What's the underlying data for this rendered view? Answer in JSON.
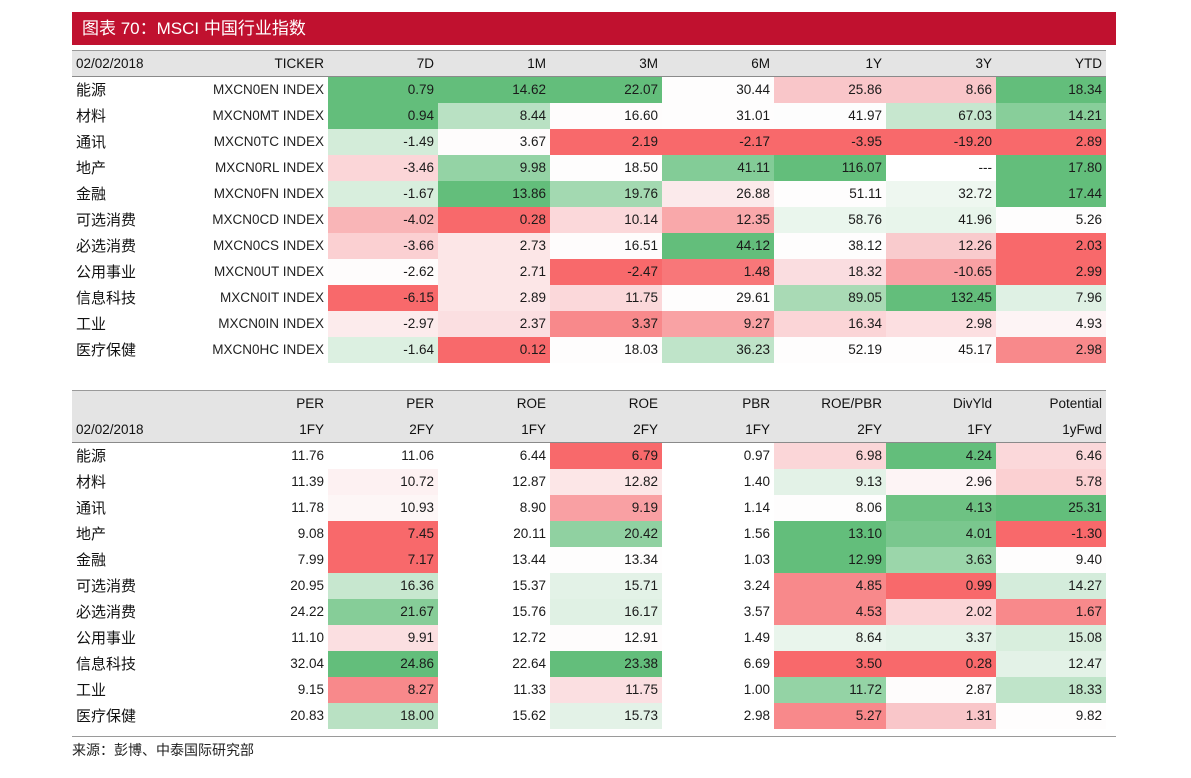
{
  "title": "图表 70：MSCI 中国行业指数",
  "table1": {
    "date": "02/02/2018",
    "columns": [
      "TICKER",
      "7D",
      "1M",
      "3M",
      "6M",
      "1Y",
      "3Y",
      "YTD"
    ],
    "rows": [
      {
        "name": "能源",
        "ticker": "MXCN0EN INDEX",
        "values": [
          "0.79",
          "14.62",
          "22.07",
          "30.44",
          "25.86",
          "8.66",
          "18.34"
        ]
      },
      {
        "name": "材料",
        "ticker": "MXCN0MT INDEX",
        "values": [
          "0.94",
          "8.44",
          "16.60",
          "31.01",
          "41.97",
          "67.03",
          "14.21"
        ]
      },
      {
        "name": "通讯",
        "ticker": "MXCN0TC INDEX",
        "values": [
          "-1.49",
          "3.67",
          "2.19",
          "-2.17",
          "-3.95",
          "-19.20",
          "2.89"
        ]
      },
      {
        "name": "地产",
        "ticker": "MXCN0RL INDEX",
        "values": [
          "-3.46",
          "9.98",
          "18.50",
          "41.11",
          "116.07",
          "---",
          "17.80"
        ]
      },
      {
        "name": "金融",
        "ticker": "MXCN0FN INDEX",
        "values": [
          "-1.67",
          "13.86",
          "19.76",
          "26.88",
          "51.11",
          "32.72",
          "17.44"
        ]
      },
      {
        "name": "可选消费",
        "ticker": "MXCN0CD INDEX",
        "values": [
          "-4.02",
          "0.28",
          "10.14",
          "12.35",
          "58.76",
          "41.96",
          "5.26"
        ]
      },
      {
        "name": "必选消费",
        "ticker": "MXCN0CS INDEX",
        "values": [
          "-3.66",
          "2.73",
          "16.51",
          "44.12",
          "38.12",
          "12.26",
          "2.03"
        ]
      },
      {
        "name": "公用事业",
        "ticker": "MXCN0UT INDEX",
        "values": [
          "-2.62",
          "2.71",
          "-2.47",
          "1.48",
          "18.32",
          "-10.65",
          "2.99"
        ]
      },
      {
        "name": "信息科技",
        "ticker": "MXCN0IT INDEX",
        "values": [
          "-6.15",
          "2.89",
          "11.75",
          "29.61",
          "89.05",
          "132.45",
          "7.96"
        ]
      },
      {
        "name": "工业",
        "ticker": "MXCN0IN INDEX",
        "values": [
          "-2.97",
          "2.37",
          "3.37",
          "9.27",
          "16.34",
          "2.98",
          "4.93"
        ]
      },
      {
        "name": "医疗保健",
        "ticker": "MXCN0HC INDEX",
        "values": [
          "-1.64",
          "0.12",
          "18.03",
          "36.23",
          "52.19",
          "45.17",
          "2.98"
        ]
      }
    ],
    "colors": [
      [
        "#63be7b",
        "#63be7b",
        "#63be7b",
        "#fefdfd",
        "#f9c6c9",
        "#f9c6c9",
        "#63be7b"
      ],
      [
        "#63be7b",
        "#b9e1c3",
        "#fefcfc",
        "#fefdfd",
        "#fdfdfd",
        "#c7e7cf",
        "#88ce9a"
      ],
      [
        "#d3ecd9",
        "#fefcfc",
        "#f8696b",
        "#f8696b",
        "#f8696b",
        "#f8696b",
        "#f8696b"
      ],
      [
        "#fbd6d8",
        "#94d3a5",
        "#fefdfd",
        "#83cc97",
        "#63be7b",
        "#ffffff",
        "#63be7b"
      ],
      [
        "#d8eedd",
        "#63be7b",
        "#a3d9b1",
        "#fbeaeb",
        "#fefdfd",
        "#eef7f0",
        "#63be7b"
      ],
      [
        "#f9b5b7",
        "#f8696b",
        "#fbd8da",
        "#f9a8aa",
        "#eaf6ed",
        "#e8f5eb",
        "#fefdfd"
      ],
      [
        "#fbd0d2",
        "#fce6e7",
        "#fefcfc",
        "#63be7b",
        "#fefdfd",
        "#f9cbcd",
        "#f8696b"
      ],
      [
        "#fefcfc",
        "#fce6e7",
        "#f8696b",
        "#f87779",
        "#fadde0",
        "#f9a0a3",
        "#f8696b"
      ],
      [
        "#f8696b",
        "#fce6e7",
        "#fbd8da",
        "#fefdfd",
        "#a9dab5",
        "#63be7b",
        "#dff1e4"
      ],
      [
        "#fcebec",
        "#fbdfe1",
        "#f8898b",
        "#f9a2a4",
        "#fbd5d7",
        "#fcdfe1",
        "#fdf4f5"
      ],
      [
        "#dcf0e1",
        "#f8696b",
        "#fefdfd",
        "#bfe4c9",
        "#fefdfd",
        "#fefdfd",
        "#f8898b"
      ]
    ]
  },
  "table2": {
    "date": "02/02/2018",
    "header1": [
      "PER",
      "PER",
      "ROE",
      "ROE",
      "PBR",
      "ROE/PBR",
      "DivYld",
      "Potential"
    ],
    "header2": [
      "1FY",
      "2FY",
      "1FY",
      "2FY",
      "1FY",
      "2FY",
      "1FY",
      "1yFwd"
    ],
    "rows": [
      {
        "name": "能源",
        "values": [
          "11.76",
          "11.06",
          "6.44",
          "6.79",
          "0.97",
          "6.98",
          "4.24",
          "6.46"
        ]
      },
      {
        "name": "材料",
        "values": [
          "11.39",
          "10.72",
          "12.87",
          "12.82",
          "1.40",
          "9.13",
          "2.96",
          "5.78"
        ]
      },
      {
        "name": "通讯",
        "values": [
          "11.78",
          "10.93",
          "8.90",
          "9.19",
          "1.14",
          "8.06",
          "4.13",
          "25.31"
        ]
      },
      {
        "name": "地产",
        "values": [
          "9.08",
          "7.45",
          "20.11",
          "20.42",
          "1.56",
          "13.10",
          "4.01",
          "-1.30"
        ]
      },
      {
        "name": "金融",
        "values": [
          "7.99",
          "7.17",
          "13.44",
          "13.34",
          "1.03",
          "12.99",
          "3.63",
          "9.40"
        ]
      },
      {
        "name": "可选消费",
        "values": [
          "20.95",
          "16.36",
          "15.37",
          "15.71",
          "3.24",
          "4.85",
          "0.99",
          "14.27"
        ]
      },
      {
        "name": "必选消费",
        "values": [
          "24.22",
          "21.67",
          "15.76",
          "16.17",
          "3.57",
          "4.53",
          "2.02",
          "1.67"
        ]
      },
      {
        "name": "公用事业",
        "values": [
          "11.10",
          "9.91",
          "12.72",
          "12.91",
          "1.49",
          "8.64",
          "3.37",
          "15.08"
        ]
      },
      {
        "name": "信息科技",
        "values": [
          "32.04",
          "24.86",
          "22.64",
          "23.38",
          "6.69",
          "3.50",
          "0.28",
          "12.47"
        ]
      },
      {
        "name": "工业",
        "values": [
          "9.15",
          "8.27",
          "11.33",
          "11.75",
          "1.00",
          "11.72",
          "2.87",
          "18.33"
        ]
      },
      {
        "name": "医疗保健",
        "values": [
          "20.83",
          "18.00",
          "15.62",
          "15.73",
          "2.98",
          "5.27",
          "1.31",
          "9.82"
        ]
      }
    ],
    "colors": [
      [
        "#ffffff",
        "#ffffff",
        "#ffffff",
        "#f8696b",
        "#ffffff",
        "#fbd6d8",
        "#63be7b",
        "#fbd8da"
      ],
      [
        "#ffffff",
        "#fdf1f2",
        "#ffffff",
        "#fce6e7",
        "#ffffff",
        "#e3f2e7",
        "#fdf4f5",
        "#fbd0d2"
      ],
      [
        "#ffffff",
        "#fdf6f6",
        "#ffffff",
        "#f9a0a3",
        "#ffffff",
        "#fefdfd",
        "#6ec283",
        "#63be7b"
      ],
      [
        "#ffffff",
        "#f8696b",
        "#ffffff",
        "#90d1a1",
        "#ffffff",
        "#63be7b",
        "#7ac78e",
        "#f8696b"
      ],
      [
        "#ffffff",
        "#f8696b",
        "#ffffff",
        "#fefdfd",
        "#ffffff",
        "#63be7b",
        "#9bd6aa",
        "#fefdfd"
      ],
      [
        "#ffffff",
        "#c7e7cf",
        "#ffffff",
        "#e3f2e7",
        "#ffffff",
        "#f8898b",
        "#f8696b",
        "#d4ecdb"
      ],
      [
        "#ffffff",
        "#86cd98",
        "#ffffff",
        "#e0f1e4",
        "#ffffff",
        "#f8898b",
        "#fbd5d7",
        "#f8898b"
      ],
      [
        "#ffffff",
        "#fbdfe1",
        "#ffffff",
        "#fefcfc",
        "#ffffff",
        "#e9f5ec",
        "#e4f3e8",
        "#d8eedd"
      ],
      [
        "#ffffff",
        "#63be7b",
        "#ffffff",
        "#63be7b",
        "#ffffff",
        "#f8696b",
        "#f8696b",
        "#e3f2e7"
      ],
      [
        "#ffffff",
        "#f8898b",
        "#ffffff",
        "#fbdfe1",
        "#ffffff",
        "#94d3a5",
        "#fefcfc",
        "#bfe4c9"
      ],
      [
        "#ffffff",
        "#b9e1c3",
        "#ffffff",
        "#e3f2e7",
        "#ffffff",
        "#f8898b",
        "#f9c6c9",
        "#fefdfd"
      ]
    ]
  },
  "source": "来源：彭博、中泰国际研究部"
}
